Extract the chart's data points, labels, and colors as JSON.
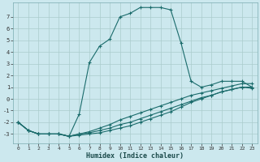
{
  "xlabel": "Humidex (Indice chaleur)",
  "background_color": "#cce8ee",
  "grid_color": "#aacccc",
  "line_color": "#1a6b6b",
  "xlim": [
    -0.5,
    23.5
  ],
  "ylim": [
    -3.8,
    8.2
  ],
  "yticks": [
    -3,
    -2,
    -1,
    0,
    1,
    2,
    3,
    4,
    5,
    6,
    7
  ],
  "xticks": [
    0,
    1,
    2,
    3,
    4,
    5,
    6,
    7,
    8,
    9,
    10,
    11,
    12,
    13,
    14,
    15,
    16,
    17,
    18,
    19,
    20,
    21,
    22,
    23
  ],
  "line1_x": [
    0,
    1,
    2,
    3,
    4,
    5,
    6,
    7,
    8,
    9,
    10,
    11,
    12,
    13,
    14,
    15,
    16,
    17,
    18,
    19,
    20,
    21,
    22,
    23
  ],
  "line1_y": [
    -2.0,
    -2.7,
    -3.0,
    -3.0,
    -3.0,
    -3.2,
    -1.3,
    3.1,
    4.5,
    5.1,
    7.0,
    7.3,
    7.8,
    7.8,
    7.8,
    7.6,
    4.8,
    1.5,
    1.0,
    1.2,
    1.5,
    1.5,
    1.5,
    1.0
  ],
  "line2_x": [
    0,
    1,
    2,
    3,
    4,
    5,
    6,
    7,
    8,
    9,
    10,
    11,
    12,
    13,
    14,
    15,
    16,
    17,
    18,
    19,
    20,
    21,
    22,
    23
  ],
  "line2_y": [
    -2.0,
    -2.7,
    -3.0,
    -3.0,
    -3.0,
    -3.2,
    -3.0,
    -2.8,
    -2.5,
    -2.2,
    -1.8,
    -1.5,
    -1.2,
    -0.9,
    -0.6,
    -0.3,
    0.0,
    0.3,
    0.5,
    0.7,
    0.9,
    1.1,
    1.3,
    1.3
  ],
  "line3_x": [
    0,
    1,
    2,
    3,
    4,
    5,
    6,
    7,
    8,
    9,
    10,
    11,
    12,
    13,
    14,
    15,
    16,
    17,
    18,
    19,
    20,
    21,
    22,
    23
  ],
  "line3_y": [
    -2.0,
    -2.7,
    -3.0,
    -3.0,
    -3.0,
    -3.2,
    -3.0,
    -2.9,
    -2.7,
    -2.5,
    -2.2,
    -2.0,
    -1.7,
    -1.4,
    -1.1,
    -0.8,
    -0.5,
    -0.2,
    0.1,
    0.3,
    0.6,
    0.8,
    1.0,
    1.0
  ],
  "line4_x": [
    0,
    1,
    2,
    3,
    4,
    5,
    6,
    7,
    8,
    9,
    10,
    11,
    12,
    13,
    14,
    15,
    16,
    17,
    18,
    19,
    20,
    21,
    22,
    23
  ],
  "line4_y": [
    -2.0,
    -2.7,
    -3.0,
    -3.0,
    -3.0,
    -3.2,
    -3.1,
    -3.0,
    -2.9,
    -2.7,
    -2.5,
    -2.3,
    -2.0,
    -1.7,
    -1.4,
    -1.1,
    -0.7,
    -0.3,
    0.0,
    0.3,
    0.6,
    0.8,
    1.0,
    0.9
  ]
}
